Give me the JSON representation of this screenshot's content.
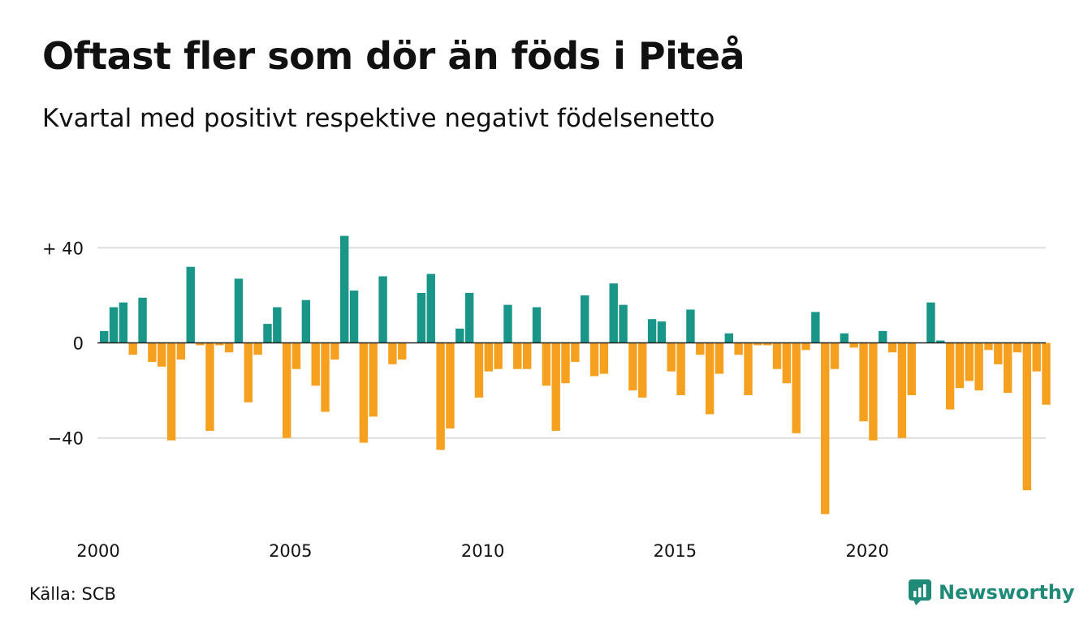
{
  "title": "Oftast fler som dör än föds i Piteå",
  "subtitle": "Kvartal med positivt respektive negativt födelsenetto",
  "source": "Källa: SCB",
  "brand": "Newsworthy",
  "colors": {
    "positive": "#1a9688",
    "negative": "#f5a01e",
    "grid": "#dddddd",
    "zero_line": "#222222",
    "brand": "#1f8a78"
  },
  "chart_data": {
    "type": "bar",
    "ylim": [
      -75,
      45
    ],
    "yticks": [
      {
        "value": 40,
        "label": "+ 40"
      },
      {
        "value": 0,
        "label": "0"
      },
      {
        "value": -40,
        "label": "−40"
      }
    ],
    "xticks": [
      {
        "year": 2000,
        "label": "2000"
      },
      {
        "year": 2005,
        "label": "2005"
      },
      {
        "year": 2010,
        "label": "2010"
      },
      {
        "year": 2015,
        "label": "2015"
      },
      {
        "year": 2020,
        "label": "2020"
      }
    ],
    "first_period": "2000 Q1",
    "frequency": "quarterly",
    "grid": true,
    "values": [
      5,
      15,
      17,
      -5,
      19,
      -8,
      -10,
      -41,
      -7,
      32,
      -1,
      -37,
      -1,
      -4,
      27,
      -25,
      -5,
      8,
      15,
      -40,
      -11,
      18,
      -18,
      -29,
      -7,
      45,
      22,
      -42,
      -31,
      28,
      -9,
      -7,
      0,
      21,
      29,
      -45,
      -36,
      6,
      21,
      -23,
      -12,
      -11,
      16,
      -11,
      -11,
      15,
      -18,
      -37,
      -17,
      -8,
      20,
      -14,
      -13,
      25,
      16,
      -20,
      -23,
      10,
      9,
      -12,
      -22,
      14,
      -5,
      -30,
      -13,
      4,
      -5,
      -22,
      -1,
      -1,
      -11,
      -17,
      -38,
      -3,
      13,
      -72,
      -11,
      4,
      -2,
      -33,
      -41,
      5,
      -4,
      -40,
      -22,
      0,
      17,
      1,
      -28,
      -19,
      -16,
      -20,
      -3,
      -9,
      -21,
      -4,
      -62,
      -12,
      -26
    ]
  }
}
